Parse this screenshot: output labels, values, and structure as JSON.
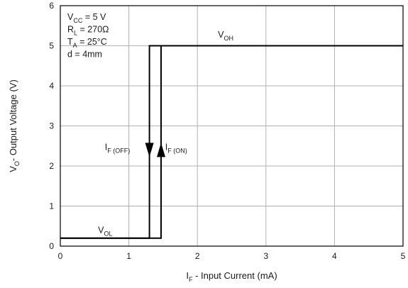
{
  "chart_data": {
    "type": "line",
    "xlabel": {
      "main": "I",
      "sub": "F",
      "rest": " - Input Current (mA)"
    },
    "ylabel": {
      "main": "V",
      "sub": "O",
      "rest": "- Output Voltage (V)"
    },
    "xlim": [
      0,
      5
    ],
    "ylim": [
      0,
      6
    ],
    "xticks": [
      0,
      1,
      2,
      3,
      4,
      5
    ],
    "yticks": [
      0,
      1,
      2,
      3,
      4,
      5,
      6
    ],
    "grid": true,
    "conditions": [
      {
        "main": "V",
        "sub": "CC",
        "rest": " = 5 V"
      },
      {
        "main": "R",
        "sub": "L",
        "rest": " = 270Ω"
      },
      {
        "main": "T",
        "sub": "A",
        "rest": " = 25°C"
      },
      {
        "main": "d = 4mm",
        "sub": "",
        "rest": ""
      }
    ],
    "series": [
      {
        "name": "I_F(OFF)",
        "direction": "decreasing current",
        "x": [
          5,
          1.3,
          1.3,
          0
        ],
        "y": [
          5,
          5,
          0.2,
          0.2
        ]
      },
      {
        "name": "I_F(ON)",
        "direction": "increasing current",
        "x": [
          0,
          1.47,
          1.47,
          5
        ],
        "y": [
          0.2,
          0.2,
          5,
          5
        ]
      }
    ],
    "annotations": [
      {
        "main": "V",
        "sub": "OH",
        "rest": "",
        "x": 2.3,
        "y": 5.2
      },
      {
        "main": "V",
        "sub": "OL",
        "rest": "",
        "x": 0.55,
        "y": 0.33
      },
      {
        "main": "I",
        "sub": "F (OFF)",
        "rest": "",
        "x": 0.65,
        "y": 2.4
      },
      {
        "main": "I",
        "sub": "F (ON)",
        "rest": "",
        "x": 1.53,
        "y": 2.4
      }
    ],
    "colors": {
      "line": "#000000",
      "grid": "#b0b0b0",
      "frame": "#000000"
    }
  }
}
